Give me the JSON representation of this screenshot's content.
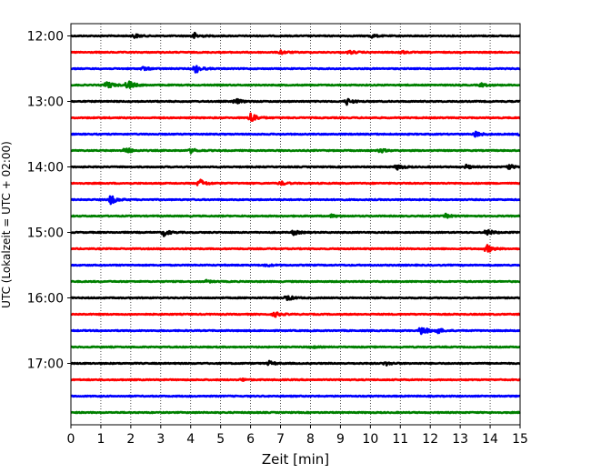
{
  "chart_data": {
    "type": "line",
    "xlabel": "Zeit  [min]",
    "ylabel": "UTC (Lokalzeit = UTC + 02:00)",
    "xlim": [
      0,
      15
    ],
    "x_ticks": [
      "0",
      "1",
      "2",
      "3",
      "4",
      "5",
      "6",
      "7",
      "8",
      "9",
      "10",
      "11",
      "12",
      "13",
      "14",
      "15"
    ],
    "y_tick_labels": [
      "12:00",
      "13:00",
      "14:00",
      "15:00",
      "16:00",
      "17:00"
    ],
    "x_grid": true,
    "trace_colors": [
      "#000000",
      "#ff0000",
      "#0000ff",
      "#008000"
    ],
    "traces": [
      {
        "start": "12:00",
        "events": [
          [
            2.1,
            0.6
          ],
          [
            4.1,
            0.9
          ],
          [
            10.0,
            0.55
          ]
        ]
      },
      {
        "start": "12:15",
        "events": [
          [
            7.0,
            0.5
          ],
          [
            9.3,
            0.45
          ],
          [
            11.0,
            0.4
          ]
        ]
      },
      {
        "start": "12:30",
        "events": [
          [
            2.4,
            0.5
          ],
          [
            4.15,
            1.2
          ]
        ]
      },
      {
        "start": "12:45",
        "events": [
          [
            1.2,
            1.1
          ],
          [
            1.9,
            1.3
          ],
          [
            13.7,
            0.5
          ]
        ]
      },
      {
        "start": "13:00",
        "events": [
          [
            5.5,
            0.7
          ],
          [
            9.2,
            0.9
          ]
        ]
      },
      {
        "start": "13:15",
        "events": [
          [
            6.0,
            1.6
          ]
        ]
      },
      {
        "start": "13:30",
        "events": [
          [
            13.5,
            0.8
          ],
          [
            15.0,
            0.5
          ]
        ]
      },
      {
        "start": "13:45",
        "events": [
          [
            1.8,
            1.0
          ],
          [
            4.0,
            0.6
          ],
          [
            10.3,
            0.6
          ]
        ]
      },
      {
        "start": "14:00",
        "events": [
          [
            10.9,
            0.8
          ],
          [
            13.2,
            0.5
          ],
          [
            14.6,
            0.7
          ]
        ]
      },
      {
        "start": "14:15",
        "events": [
          [
            4.3,
            1.1
          ],
          [
            7.0,
            0.5
          ]
        ]
      },
      {
        "start": "14:30",
        "events": [
          [
            1.3,
            1.4
          ]
        ]
      },
      {
        "start": "14:45",
        "events": [
          [
            8.7,
            0.4
          ],
          [
            12.5,
            0.5
          ]
        ]
      },
      {
        "start": "15:00",
        "events": [
          [
            3.1,
            0.9
          ],
          [
            7.4,
            0.7
          ],
          [
            13.9,
            0.8
          ]
        ]
      },
      {
        "start": "15:15",
        "events": [
          [
            13.9,
            1.0
          ]
        ]
      },
      {
        "start": "15:30",
        "events": [
          [
            6.5,
            0.35
          ]
        ]
      },
      {
        "start": "15:45",
        "events": [
          [
            4.5,
            0.3
          ]
        ]
      },
      {
        "start": "16:00",
        "events": [
          [
            7.2,
            0.8
          ]
        ]
      },
      {
        "start": "16:15",
        "events": [
          [
            6.8,
            0.7
          ]
        ]
      },
      {
        "start": "16:30",
        "events": [
          [
            11.7,
            1.3
          ],
          [
            12.2,
            0.8
          ]
        ]
      },
      {
        "start": "16:45",
        "events": [
          [
            8.0,
            0.3
          ]
        ]
      },
      {
        "start": "17:00",
        "events": [
          [
            6.6,
            0.6
          ],
          [
            10.5,
            0.5
          ]
        ]
      },
      {
        "start": "17:15",
        "events": [
          [
            5.7,
            0.3
          ]
        ]
      },
      {
        "start": "17:30",
        "events": []
      },
      {
        "start": "17:45",
        "events": []
      }
    ]
  }
}
